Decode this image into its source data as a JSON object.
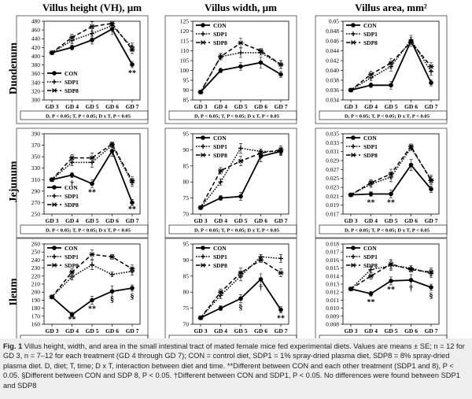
{
  "column_titles": [
    "Villus height (VH), µm",
    "Villus width, µm",
    "Villus area, mm²"
  ],
  "row_titles": [
    "Duodenum",
    "Jejunum",
    "Ileum"
  ],
  "gd_labels": [
    "GD 3",
    "GD 4",
    "GD 5",
    "GD 6",
    "GD 7"
  ],
  "series_names": [
    "CON",
    "SDP1",
    "SDP8"
  ],
  "stats_text": "D, P < 0.05; T, P < 0.05; D x T, P < 0.05",
  "caption": {
    "label": "Fig. 1",
    "text": "Villus height, width, and area in the small intestinal tract of mated female mice fed experimental diets. Values are means ± SE; n = 12 for GD 3, n = 7–12 for each treatment (GD 4 through GD 7); CON = control diet, SDP1 = 1% spray-dried plasma diet, SDP8 = 8% spray-dried plasma diet. D, diet; T, time; D x T, interaction between diet and time. **Different between CON and each other treatment (SDP1 and 8), P < 0.05. §Different between CON and SDP 8, P < 0.05. †Different between CON and SDP1, P < 0.05. No differences were found between SDP1 and SDP8"
  },
  "chart_data": [
    {
      "type": "line",
      "row": "Duodenum",
      "col": "Villus height (VH), µm",
      "ylim": [
        300,
        480
      ],
      "yticks": [
        "300",
        "320",
        "340",
        "360",
        "380",
        "400",
        "420",
        "440",
        "460",
        "480"
      ],
      "categories": [
        "GD 3",
        "GD 4",
        "GD 5",
        "GD 6",
        "GD 7"
      ],
      "series": [
        {
          "name": "CON",
          "values": [
            408,
            420,
            437,
            462,
            381
          ]
        },
        {
          "name": "SDP1",
          "values": [
            408,
            436,
            452,
            470,
            421
          ]
        },
        {
          "name": "SDP8",
          "values": [
            408,
            443,
            468,
            475,
            415
          ]
        }
      ],
      "annotations": [
        {
          "text": "**",
          "at": "GD 7"
        }
      ],
      "legend": "lower-left"
    },
    {
      "type": "line",
      "row": "Duodenum",
      "col": "Villus width, µm",
      "ylim": [
        85,
        125
      ],
      "yticks": [
        "85",
        "90",
        "95",
        "100",
        "105",
        "110",
        "115",
        "120",
        "125"
      ],
      "categories": [
        "GD 3",
        "GD 4",
        "GD 5",
        "GD 6",
        "GD 7"
      ],
      "series": [
        {
          "name": "CON",
          "values": [
            89,
            100,
            102,
            104,
            98
          ]
        },
        {
          "name": "SDP1",
          "values": [
            89,
            107,
            109,
            109,
            103
          ]
        },
        {
          "name": "SDP8",
          "values": [
            89,
            107,
            114,
            110,
            103
          ]
        }
      ],
      "annotations": [],
      "legend": "top-left"
    },
    {
      "type": "line",
      "row": "Duodenum",
      "col": "Villus area, mm²",
      "ylim": [
        0.034,
        0.05
      ],
      "yticks": [
        "0.034",
        "0.036",
        "0.038",
        "0.040",
        "0.042",
        "0.044",
        "0.046",
        "0.048",
        "0.05"
      ],
      "categories": [
        "GD 3",
        "GD 4",
        "GD 5",
        "GD 6",
        "GD 7"
      ],
      "series": [
        {
          "name": "CON",
          "values": [
            0.036,
            0.037,
            0.037,
            0.046,
            0.0375
          ]
        },
        {
          "name": "SDP1",
          "values": [
            0.036,
            0.0385,
            0.0408,
            0.0462,
            0.0398
          ]
        },
        {
          "name": "SDP8",
          "values": [
            0.036,
            0.0392,
            0.0415,
            0.0458,
            0.0408
          ]
        }
      ],
      "annotations": [],
      "legend": "top-left"
    },
    {
      "type": "line",
      "row": "Jejunum",
      "col": "Villus height (VH), µm",
      "ylim": [
        250,
        390
      ],
      "yticks": [
        "250",
        "270",
        "290",
        "310",
        "330",
        "350",
        "370",
        "390"
      ],
      "categories": [
        "GD 3",
        "GD 4",
        "GD 5",
        "GD 6",
        "GD 7"
      ],
      "series": [
        {
          "name": "CON",
          "values": [
            310,
            318,
            303,
            360,
            270
          ]
        },
        {
          "name": "SDP1",
          "values": [
            310,
            340,
            340,
            370,
            305
          ]
        },
        {
          "name": "SDP8",
          "values": [
            310,
            348,
            348,
            372,
            308
          ]
        }
      ],
      "annotations": [
        {
          "text": "†",
          "at": "GD 4"
        },
        {
          "text": "**",
          "at": "GD 5"
        },
        {
          "text": "**",
          "at": "GD 7"
        }
      ],
      "legend": "lower-left"
    },
    {
      "type": "line",
      "row": "Jejunum",
      "col": "Villus width, µm",
      "ylim": [
        70,
        95
      ],
      "yticks": [
        "70",
        "75",
        "80",
        "85",
        "90",
        "95"
      ],
      "categories": [
        "GD 3",
        "GD 4",
        "GD 5",
        "GD 6",
        "GD 7"
      ],
      "series": [
        {
          "name": "CON",
          "values": [
            72,
            75,
            75.5,
            88,
            89.5
          ]
        },
        {
          "name": "SDP1",
          "values": [
            72,
            80,
            90.5,
            89.5,
            89.5
          ]
        },
        {
          "name": "SDP8",
          "values": [
            72,
            83.5,
            86.5,
            89,
            90
          ]
        }
      ],
      "annotations": [],
      "legend": "top-left"
    },
    {
      "type": "line",
      "row": "Jejunum",
      "col": "Villus area, mm²",
      "ylim": [
        0.017,
        0.035
      ],
      "yticks": [
        "0.017",
        "0.019",
        "0.021",
        "0.023",
        "0.025",
        "0.027",
        "0.029",
        "0.031",
        "0.033",
        "0.035"
      ],
      "categories": [
        "GD 3",
        "GD 4",
        "GD 5",
        "GD 6",
        "GD 7"
      ],
      "series": [
        {
          "name": "CON",
          "values": [
            0.0213,
            0.0215,
            0.0215,
            0.028,
            0.0226
          ]
        },
        {
          "name": "SDP1",
          "values": [
            0.0213,
            0.0237,
            0.0253,
            0.0318,
            0.0248
          ]
        },
        {
          "name": "SDP8",
          "values": [
            0.0213,
            0.024,
            0.026,
            0.0322,
            0.0245
          ]
        }
      ],
      "annotations": [
        {
          "text": "**",
          "at": "GD 4"
        },
        {
          "text": "**",
          "at": "GD 5"
        }
      ],
      "legend": "top-left"
    },
    {
      "type": "line",
      "row": "Ileum",
      "col": "Villus height (VH), µm",
      "ylim": [
        160,
        260
      ],
      "yticks": [
        "160",
        "170",
        "180",
        "190",
        "200",
        "210",
        "220",
        "230",
        "240",
        "250",
        "260"
      ],
      "categories": [
        "GD 3",
        "GD 4",
        "GD 5",
        "GD 6",
        "GD 7"
      ],
      "series": [
        {
          "name": "CON",
          "values": [
            194,
            172,
            190,
            201,
            205
          ]
        },
        {
          "name": "SDP1",
          "values": [
            194,
            219,
            234,
            222,
            226
          ]
        },
        {
          "name": "SDP8",
          "values": [
            194,
            225,
            247,
            244,
            229
          ]
        }
      ],
      "annotations": [
        {
          "text": "**",
          "at": "GD 4"
        },
        {
          "text": "**",
          "at": "GD 5"
        },
        {
          "text": "§",
          "at": "GD 6"
        },
        {
          "text": "§",
          "at": "GD 7"
        }
      ],
      "legend": "top-left"
    },
    {
      "type": "line",
      "row": "Ileum",
      "col": "Villus width, µm",
      "ylim": [
        70,
        95
      ],
      "yticks": [
        "70",
        "75",
        "80",
        "85",
        "90",
        "95"
      ],
      "categories": [
        "GD 3",
        "GD 4",
        "GD 5",
        "GD 6",
        "GD 7"
      ],
      "series": [
        {
          "name": "CON",
          "values": [
            72,
            75,
            78,
            84,
            74.5
          ]
        },
        {
          "name": "SDP1",
          "values": [
            72,
            79,
            85,
            91,
            90.5
          ]
        },
        {
          "name": "SDP8",
          "values": [
            72,
            80,
            86,
            90,
            86
          ]
        }
      ],
      "annotations": [
        {
          "text": "§",
          "at": "GD 5"
        },
        {
          "text": "†",
          "at": "GD 6"
        },
        {
          "text": "**",
          "at": "GD 7"
        }
      ],
      "legend": "top-left"
    },
    {
      "type": "line",
      "row": "Ileum",
      "col": "Villus area, mm²",
      "ylim": [
        0.008,
        0.018
      ],
      "yticks": [
        "0.008",
        "0.009",
        "0.010",
        "0.011",
        "0.012",
        "0.013",
        "0.014",
        "0.015",
        "0.016",
        "0.017",
        "0.018"
      ],
      "categories": [
        "GD 3",
        "GD 4",
        "GD 5",
        "GD 6",
        "GD 7"
      ],
      "series": [
        {
          "name": "CON",
          "values": [
            0.0124,
            0.0118,
            0.0134,
            0.0135,
            0.0126
          ]
        },
        {
          "name": "SDP1",
          "values": [
            0.0124,
            0.0148,
            0.0153,
            0.015,
            0.0143
          ]
        },
        {
          "name": "SDP8",
          "values": [
            0.0124,
            0.014,
            0.0155,
            0.0148,
            0.0145
          ]
        }
      ],
      "annotations": [
        {
          "text": "**",
          "at": "GD 4"
        },
        {
          "text": "**",
          "at": "GD 5"
        },
        {
          "text": "†",
          "at": "GD 6"
        },
        {
          "text": "§",
          "at": "GD 7"
        }
      ],
      "legend": "top-left"
    }
  ]
}
